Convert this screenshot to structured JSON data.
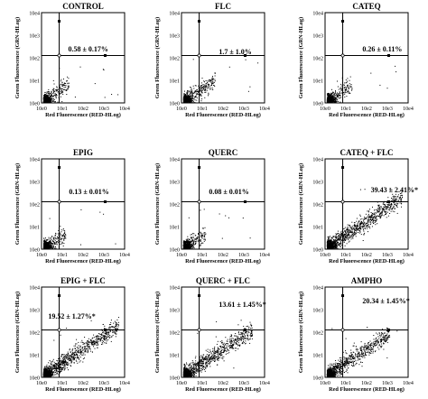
{
  "axis_ticks": [
    "10e0",
    "10e1",
    "10e2",
    "10e3",
    "10e4"
  ],
  "x_axis_label": "Red Fluorescence (RED-HLog)",
  "y_axis_label": "Green Fluorescence (GRN-HLog)",
  "chart_data": [
    {
      "type": "scatter",
      "title": "CONTROL",
      "annotation": "0.58 ± 0.17%",
      "xlabel": "Red Fluorescence (RED-HLog)",
      "ylabel": "Green Fluorescence (GRN-HLog)",
      "x_ticks": [
        "10e0",
        "10e1",
        "10e2",
        "10e3",
        "10e4"
      ],
      "y_ticks": [
        "10e0",
        "10e1",
        "10e2",
        "10e3",
        "10e4"
      ],
      "xlim": [
        0,
        4
      ],
      "ylim": [
        0,
        4
      ],
      "scale": "log",
      "gate": [
        0.85,
        2.1
      ],
      "upper_right_percent": 0.58,
      "upper_right_sd": 0.17,
      "spread": 0.2
    },
    {
      "type": "scatter",
      "title": "FLC",
      "annotation": "1.7 ± 1.0%",
      "xlabel": "Red Fluorescence (RED-HLog)",
      "ylabel": "Green Fluorescence (GRN-HLog)",
      "x_ticks": [
        "10e0",
        "10e1",
        "10e2",
        "10e3",
        "10e4"
      ],
      "y_ticks": [
        "10e0",
        "10e1",
        "10e2",
        "10e3",
        "10e4"
      ],
      "xlim": [
        0,
        4
      ],
      "ylim": [
        0,
        4
      ],
      "scale": "log",
      "gate": [
        0.85,
        2.1
      ],
      "upper_right_percent": 1.7,
      "upper_right_sd": 1.0,
      "spread": 0.3
    },
    {
      "type": "scatter",
      "title": "CATEQ",
      "annotation": "0.26 ± 0.11%",
      "xlabel": "Red Fluorescence (RED-HLog)",
      "ylabel": "Green Fluorescence (GRN-HLog)",
      "x_ticks": [
        "10e0",
        "10e1",
        "10e2",
        "10e3",
        "10e4"
      ],
      "y_ticks": [
        "10e0",
        "10e1",
        "10e2",
        "10e3",
        "10e4"
      ],
      "xlim": [
        0,
        4
      ],
      "ylim": [
        0,
        4
      ],
      "scale": "log",
      "gate": [
        0.85,
        2.1
      ],
      "upper_right_percent": 0.26,
      "upper_right_sd": 0.11,
      "spread": 0.2
    },
    {
      "type": "scatter",
      "title": "EPIG",
      "annotation": "0.13 ± 0.01%",
      "xlabel": "Red Fluorescence (RED-HLog)",
      "ylabel": "Green Fluorescence (GRN-HLog)",
      "x_ticks": [
        "10e0",
        "10e1",
        "10e2",
        "10e3",
        "10e4"
      ],
      "y_ticks": [
        "10e0",
        "10e1",
        "10e2",
        "10e3",
        "10e4"
      ],
      "xlim": [
        0,
        4
      ],
      "ylim": [
        0,
        4
      ],
      "scale": "log",
      "gate": [
        0.85,
        2.1
      ],
      "upper_right_percent": 0.13,
      "upper_right_sd": 0.01,
      "spread": 0.15
    },
    {
      "type": "scatter",
      "title": "QUERC",
      "annotation": "0.08 ± 0.01%",
      "xlabel": "Red Fluorescence (RED-HLog)",
      "ylabel": "Green Fluorescence (GRN-HLog)",
      "x_ticks": [
        "10e0",
        "10e1",
        "10e2",
        "10e3",
        "10e4"
      ],
      "y_ticks": [
        "10e0",
        "10e1",
        "10e2",
        "10e3",
        "10e4"
      ],
      "xlim": [
        0,
        4
      ],
      "ylim": [
        0,
        4
      ],
      "scale": "log",
      "gate": [
        0.85,
        2.1
      ],
      "upper_right_percent": 0.08,
      "upper_right_sd": 0.01,
      "spread": 0.15
    },
    {
      "type": "scatter",
      "title": "CATEQ + FLC",
      "annotation": "39.43 ± 2.41%*",
      "xlabel": "Red Fluorescence (RED-HLog)",
      "ylabel": "Green Fluorescence (GRN-HLog)",
      "x_ticks": [
        "10e0",
        "10e1",
        "10e2",
        "10e3",
        "10e4"
      ],
      "y_ticks": [
        "10e0",
        "10e1",
        "10e2",
        "10e3",
        "10e4"
      ],
      "xlim": [
        0,
        4
      ],
      "ylim": [
        0,
        4
      ],
      "scale": "log",
      "gate": [
        0.85,
        2.1
      ],
      "upper_right_percent": 39.43,
      "upper_right_sd": 2.41,
      "spread": 1.0
    },
    {
      "type": "scatter",
      "title": "EPIG + FLC",
      "annotation": "19.52 ± 1.27%*",
      "xlabel": "Red Fluorescence (RED-HLog)",
      "ylabel": "Green Fluorescence (GRN-HLog)",
      "x_ticks": [
        "10e0",
        "10e1",
        "10e2",
        "10e3",
        "10e4"
      ],
      "y_ticks": [
        "10e0",
        "10e1",
        "10e2",
        "10e3",
        "10e4"
      ],
      "xlim": [
        0,
        4
      ],
      "ylim": [
        0,
        4
      ],
      "scale": "log",
      "gate": [
        0.85,
        2.1
      ],
      "upper_right_percent": 19.52,
      "upper_right_sd": 1.27,
      "spread": 1.0
    },
    {
      "type": "scatter",
      "title": "QUERC + FLC",
      "annotation": "13.61 ± 1.45%*",
      "xlabel": "Red Fluorescence (RED-HLog)",
      "ylabel": "Green Fluorescence (GRN-HLog)",
      "x_ticks": [
        "10e0",
        "10e1",
        "10e2",
        "10e3",
        "10e4"
      ],
      "y_ticks": [
        "10e0",
        "10e1",
        "10e2",
        "10e3",
        "10e4"
      ],
      "xlim": [
        0,
        4
      ],
      "ylim": [
        0,
        4
      ],
      "scale": "log",
      "gate": [
        0.85,
        2.1
      ],
      "upper_right_percent": 13.61,
      "upper_right_sd": 1.45,
      "spread": 0.9
    },
    {
      "type": "scatter",
      "title": "AMPHO",
      "annotation": "20.34 ± 1.45%*",
      "xlabel": "Red Fluorescence (RED-HLog)",
      "ylabel": "Green Fluorescence (GRN-HLog)",
      "x_ticks": [
        "10e0",
        "10e1",
        "10e2",
        "10e3",
        "10e4"
      ],
      "y_ticks": [
        "10e0",
        "10e1",
        "10e2",
        "10e3",
        "10e4"
      ],
      "xlim": [
        0,
        4
      ],
      "ylim": [
        0,
        4
      ],
      "scale": "log",
      "gate": [
        0.85,
        2.1
      ],
      "upper_right_percent": 20.34,
      "upper_right_sd": 1.45,
      "spread": 0.8
    }
  ]
}
